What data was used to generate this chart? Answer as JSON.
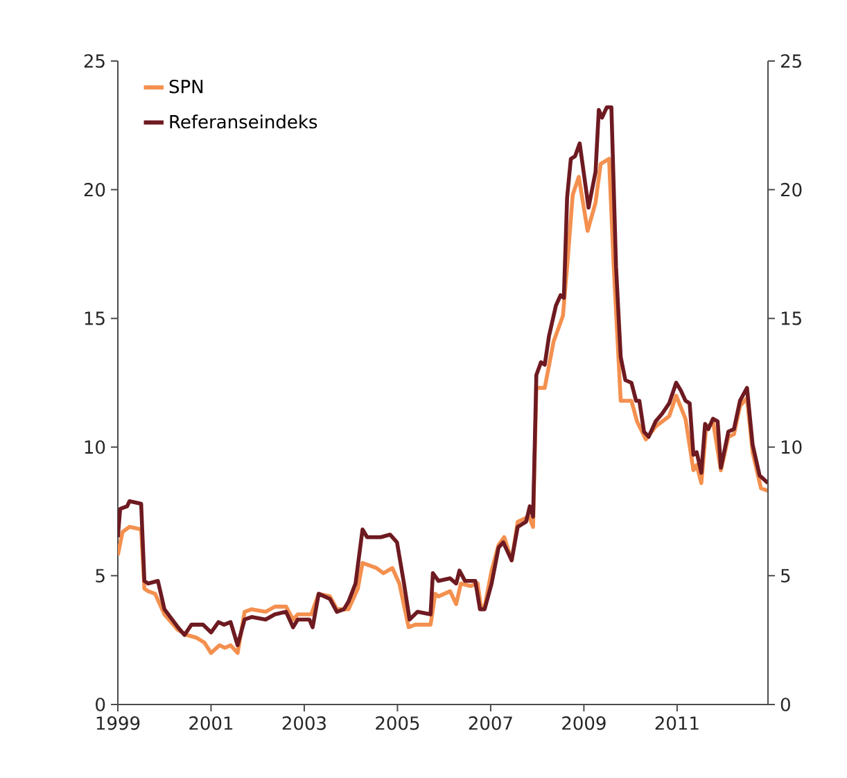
{
  "chart_data": {
    "type": "line",
    "xlim": [
      1999,
      2012.95
    ],
    "xticks": [
      1999,
      2001,
      2003,
      2005,
      2007,
      2009,
      2011
    ],
    "ylim": [
      0,
      25
    ],
    "yticks": [
      0,
      5,
      10,
      15,
      20,
      25
    ],
    "y2lim": [
      0,
      25
    ],
    "y2ticks": [
      0,
      5,
      10,
      15,
      20,
      25
    ],
    "legend": "top left",
    "grid": false,
    "series": [
      {
        "name": "SPN",
        "color": "#f4904f",
        "x": [
          1999.0,
          1999.1,
          1999.25,
          1999.5,
          1999.57,
          1999.65,
          1999.8,
          2000.0,
          2000.29,
          2000.48,
          2000.68,
          2000.86,
          2001.0,
          2001.18,
          2001.3,
          2001.42,
          2001.57,
          2001.72,
          2001.87,
          2002.17,
          2002.37,
          2002.61,
          2002.76,
          2002.86,
          2003.15,
          2003.31,
          2003.55,
          2003.7,
          2003.95,
          2004.15,
          2004.25,
          2004.55,
          2004.7,
          2004.89,
          2005.04,
          2005.24,
          2005.38,
          2005.71,
          2005.81,
          2005.88,
          2006.13,
          2006.26,
          2006.36,
          2006.57,
          2006.72,
          2006.79,
          2006.87,
          2007.02,
          2007.17,
          2007.29,
          2007.45,
          2007.58,
          2007.82,
          2007.91,
          2007.98,
          2008.16,
          2008.35,
          2008.55,
          2008.64,
          2008.76,
          2008.89,
          2009.08,
          2009.25,
          2009.36,
          2009.54,
          2009.64,
          2009.79,
          2010.02,
          2010.14,
          2010.33,
          2010.54,
          2010.83,
          2010.98,
          2011.18,
          2011.35,
          2011.42,
          2011.52,
          2011.62,
          2011.77,
          2011.94,
          2012.1,
          2012.22,
          2012.35,
          2012.5,
          2012.62,
          2012.8,
          2012.95
        ],
        "values": [
          5.8,
          6.7,
          6.9,
          6.8,
          4.5,
          4.4,
          4.3,
          3.5,
          2.9,
          2.7,
          2.6,
          2.4,
          2.0,
          2.3,
          2.2,
          2.3,
          2.0,
          3.6,
          3.7,
          3.6,
          3.8,
          3.8,
          3.3,
          3.5,
          3.5,
          4.3,
          4.2,
          3.7,
          3.7,
          4.5,
          5.5,
          5.3,
          5.1,
          5.3,
          4.7,
          3.0,
          3.1,
          3.1,
          4.3,
          4.2,
          4.4,
          3.9,
          4.7,
          4.6,
          4.7,
          3.8,
          3.8,
          5.2,
          6.2,
          6.5,
          5.6,
          7.1,
          7.3,
          6.9,
          12.3,
          12.3,
          14.1,
          15.1,
          17.0,
          19.8,
          20.5,
          18.4,
          19.5,
          21.0,
          21.2,
          17.0,
          11.8,
          11.8,
          11.0,
          10.3,
          10.8,
          11.2,
          12.0,
          11.1,
          9.1,
          9.3,
          8.6,
          10.7,
          11.0,
          9.1,
          10.4,
          10.5,
          11.6,
          11.9,
          9.8,
          8.4,
          8.3
        ]
      },
      {
        "name": "Referanseindeks",
        "color": "#6e1a21",
        "x": [
          1999.0,
          1999.05,
          1999.2,
          1999.25,
          1999.5,
          1999.57,
          1999.65,
          1999.86,
          2000.0,
          2000.29,
          2000.43,
          2000.58,
          2000.83,
          2001.0,
          2001.16,
          2001.28,
          2001.42,
          2001.57,
          2001.72,
          2001.87,
          2002.17,
          2002.37,
          2002.61,
          2002.76,
          2002.86,
          2003.11,
          2003.18,
          2003.31,
          2003.55,
          2003.7,
          2003.85,
          2003.95,
          2004.1,
          2004.25,
          2004.35,
          2004.64,
          2004.84,
          2004.99,
          2005.14,
          2005.26,
          2005.43,
          2005.71,
          2005.76,
          2005.88,
          2006.13,
          2006.26,
          2006.33,
          2006.45,
          2006.67,
          2006.77,
          2006.87,
          2007.02,
          2007.17,
          2007.27,
          2007.45,
          2007.58,
          2007.76,
          2007.84,
          2007.91,
          2007.98,
          2008.08,
          2008.16,
          2008.25,
          2008.4,
          2008.5,
          2008.57,
          2008.64,
          2008.72,
          2008.81,
          2008.91,
          2009.1,
          2009.25,
          2009.32,
          2009.39,
          2009.49,
          2009.59,
          2009.69,
          2009.79,
          2009.89,
          2010.02,
          2010.12,
          2010.19,
          2010.29,
          2010.39,
          2010.54,
          2010.68,
          2010.83,
          2010.98,
          2011.08,
          2011.18,
          2011.27,
          2011.35,
          2011.42,
          2011.52,
          2011.6,
          2011.67,
          2011.77,
          2011.87,
          2011.94,
          2012.1,
          2012.22,
          2012.35,
          2012.5,
          2012.62,
          2012.77,
          2012.95
        ],
        "values": [
          6.5,
          7.6,
          7.7,
          7.9,
          7.8,
          4.8,
          4.7,
          4.8,
          3.7,
          3.0,
          2.7,
          3.1,
          3.1,
          2.8,
          3.2,
          3.1,
          3.2,
          2.3,
          3.3,
          3.4,
          3.3,
          3.5,
          3.6,
          3.0,
          3.3,
          3.3,
          3.0,
          4.3,
          4.1,
          3.6,
          3.7,
          4.0,
          4.7,
          6.8,
          6.5,
          6.5,
          6.6,
          6.3,
          4.7,
          3.3,
          3.6,
          3.5,
          5.1,
          4.8,
          4.9,
          4.7,
          5.2,
          4.8,
          4.8,
          3.7,
          3.7,
          4.7,
          6.1,
          6.3,
          5.6,
          6.9,
          7.1,
          7.7,
          7.3,
          12.8,
          13.3,
          13.2,
          14.3,
          15.5,
          15.9,
          15.8,
          19.7,
          21.2,
          21.3,
          21.8,
          19.3,
          20.7,
          23.1,
          22.8,
          23.2,
          23.2,
          17.0,
          13.5,
          12.6,
          12.5,
          11.8,
          11.8,
          10.6,
          10.4,
          11.0,
          11.3,
          11.7,
          12.5,
          12.2,
          11.8,
          11.7,
          9.7,
          9.8,
          9.0,
          10.9,
          10.7,
          11.1,
          11.0,
          9.2,
          10.6,
          10.7,
          11.8,
          12.3,
          10.1,
          8.9,
          8.6
        ]
      }
    ]
  }
}
